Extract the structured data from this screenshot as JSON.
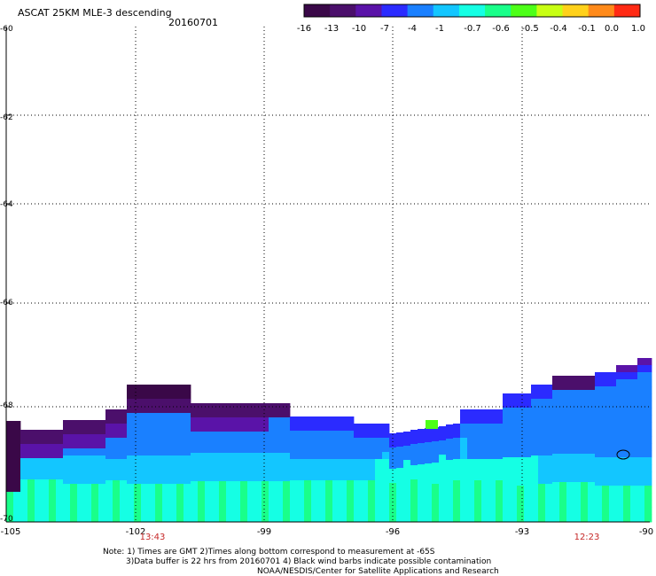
{
  "header": {
    "title": "ASCAT 25KM MLE-3 descending",
    "date": "20160701"
  },
  "colorbar": {
    "ticks": [
      "-16",
      "-13",
      "-10",
      "-7",
      "-4",
      "-1",
      "-0.7",
      "-0.6",
      "-0.5",
      "-0.4",
      "-0.1",
      "0.0",
      "1.0"
    ],
    "colors": [
      "#3a0848",
      "#4b0f6b",
      "#5a13a8",
      "#2b2bff",
      "#1a80ff",
      "#13c6ff",
      "#15ffe4",
      "#19ff8a",
      "#4dff18",
      "#c8ff13",
      "#ffd11a",
      "#ff8a1a",
      "#ff2a14"
    ]
  },
  "map": {
    "lat_labels": [
      "-60",
      "-62",
      "-64",
      "-66",
      "-68",
      "-70"
    ],
    "lon_labels": [
      "-105",
      "-102",
      "-99",
      "-96",
      "-93",
      "-90"
    ],
    "times": [
      "13:43",
      "12:23"
    ],
    "grid_style": "dotted",
    "swath_colors": {
      "deep": "#3a0848",
      "purple": "#4b0f6b",
      "indigo": "#5a13a8",
      "blue": "#2b2bff",
      "azure": "#1a80ff",
      "sky": "#13c6ff",
      "cyan": "#15ffe4",
      "mint": "#19ff8a",
      "green": "#4dff18"
    }
  },
  "notes": {
    "line1": "Note: 1) Times are GMT 2)Times along bottom correspond to measurement at -65S",
    "line2": "3)Data buffer is 22 hrs from 20160701 4) Black wind barbs indicate possible contamination",
    "line3": "NOAA/NESDIS/Center for Satellite Applications and Research"
  }
}
